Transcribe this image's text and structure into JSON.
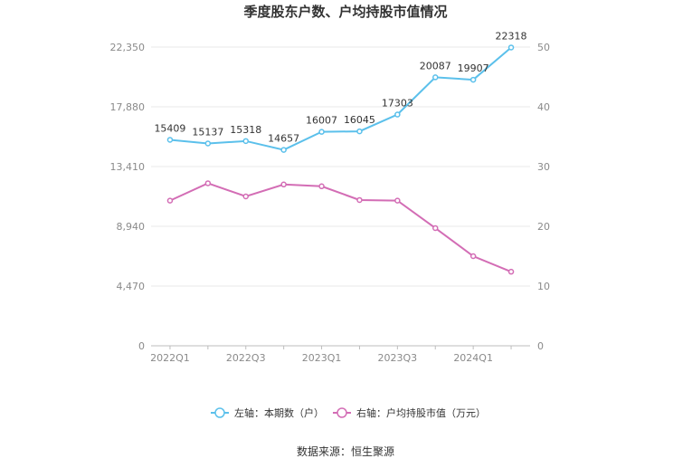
{
  "chart_data": {
    "type": "line",
    "title": "季度股东户数、户均持股市值情况",
    "categories": [
      "2022Q1",
      "2022Q2",
      "2022Q3",
      "2022Q4",
      "2023Q1",
      "2023Q2",
      "2023Q3",
      "2023Q4",
      "2024Q1",
      "2024Q2"
    ],
    "x_tick_labels": [
      "2022Q1",
      "2022Q3",
      "2023Q1",
      "2023Q3",
      "2024Q1"
    ],
    "left_axis": {
      "ylim": [
        0,
        22350
      ],
      "ticks": [
        "0",
        "4,470",
        "8,940",
        "13,410",
        "17,880",
        "22,350"
      ]
    },
    "right_axis": {
      "ylim": [
        0,
        50
      ],
      "ticks": [
        "0",
        "10",
        "20",
        "30",
        "40",
        "50"
      ]
    },
    "series": [
      {
        "name": "左轴：本期数（户）",
        "axis": "left",
        "color": "#5bc0eb",
        "values": [
          15409,
          15137,
          15318,
          14657,
          16007,
          16045,
          17303,
          20087,
          19907,
          22318
        ],
        "labels": [
          "15409",
          "15137",
          "15318",
          "14657",
          "16007",
          "16045",
          "17303",
          "20087",
          "19907",
          "22318"
        ]
      },
      {
        "name": "右轴：户均持股市值（万元）",
        "axis": "right",
        "color": "#d36db5",
        "values": [
          24.3,
          27.2,
          25.0,
          27.0,
          26.7,
          24.4,
          24.3,
          19.7,
          15.0,
          12.4
        ]
      }
    ],
    "grid": true,
    "legend_position": "bottom"
  },
  "source": "数据来源：恒生聚源"
}
